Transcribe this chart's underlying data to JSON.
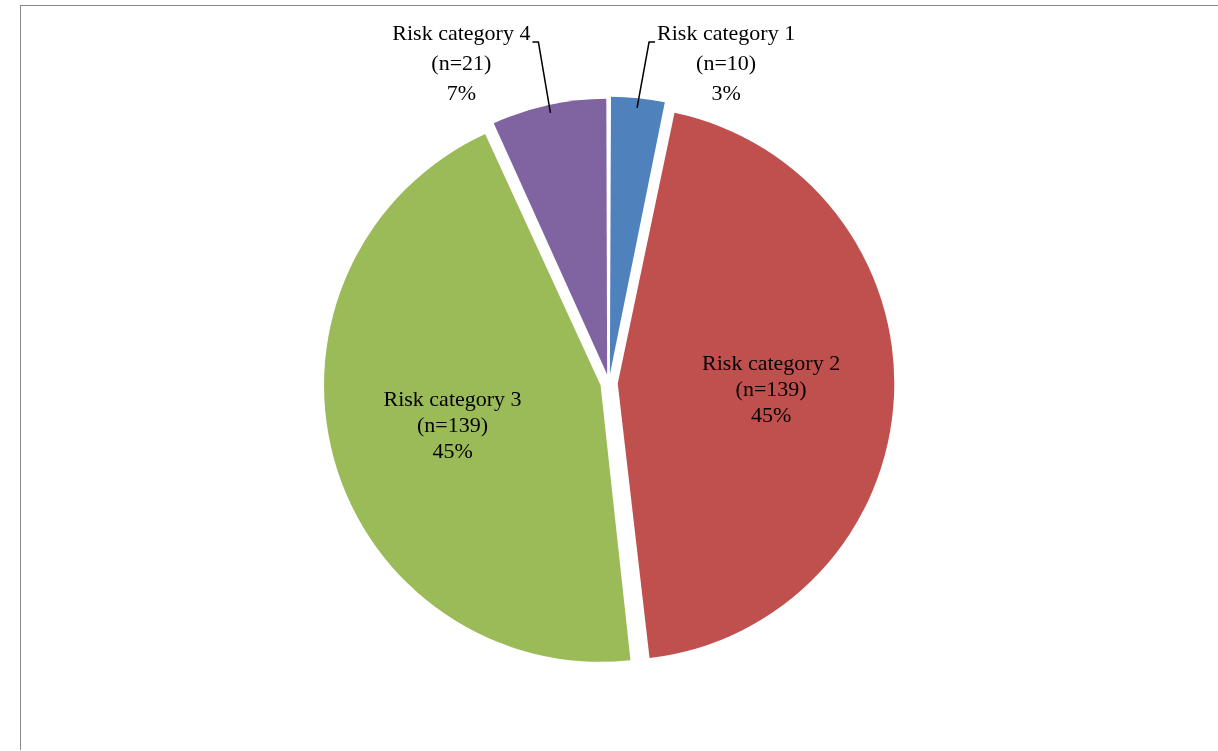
{
  "chart_data": {
    "type": "pie",
    "categories": [
      "Risk category 1",
      "Risk category 2",
      "Risk category 3",
      "Risk category 4"
    ],
    "values": [
      10,
      139,
      139,
      21
    ],
    "value_labels": [
      "(n=10)\n3%",
      "(n=139)\n45%",
      "(n=139)\n45%",
      "(n=21)\n7%"
    ],
    "colors": [
      "#4f81bd",
      "#c0504d",
      "#9bbb59",
      "#8064a2"
    ],
    "legend": false
  }
}
